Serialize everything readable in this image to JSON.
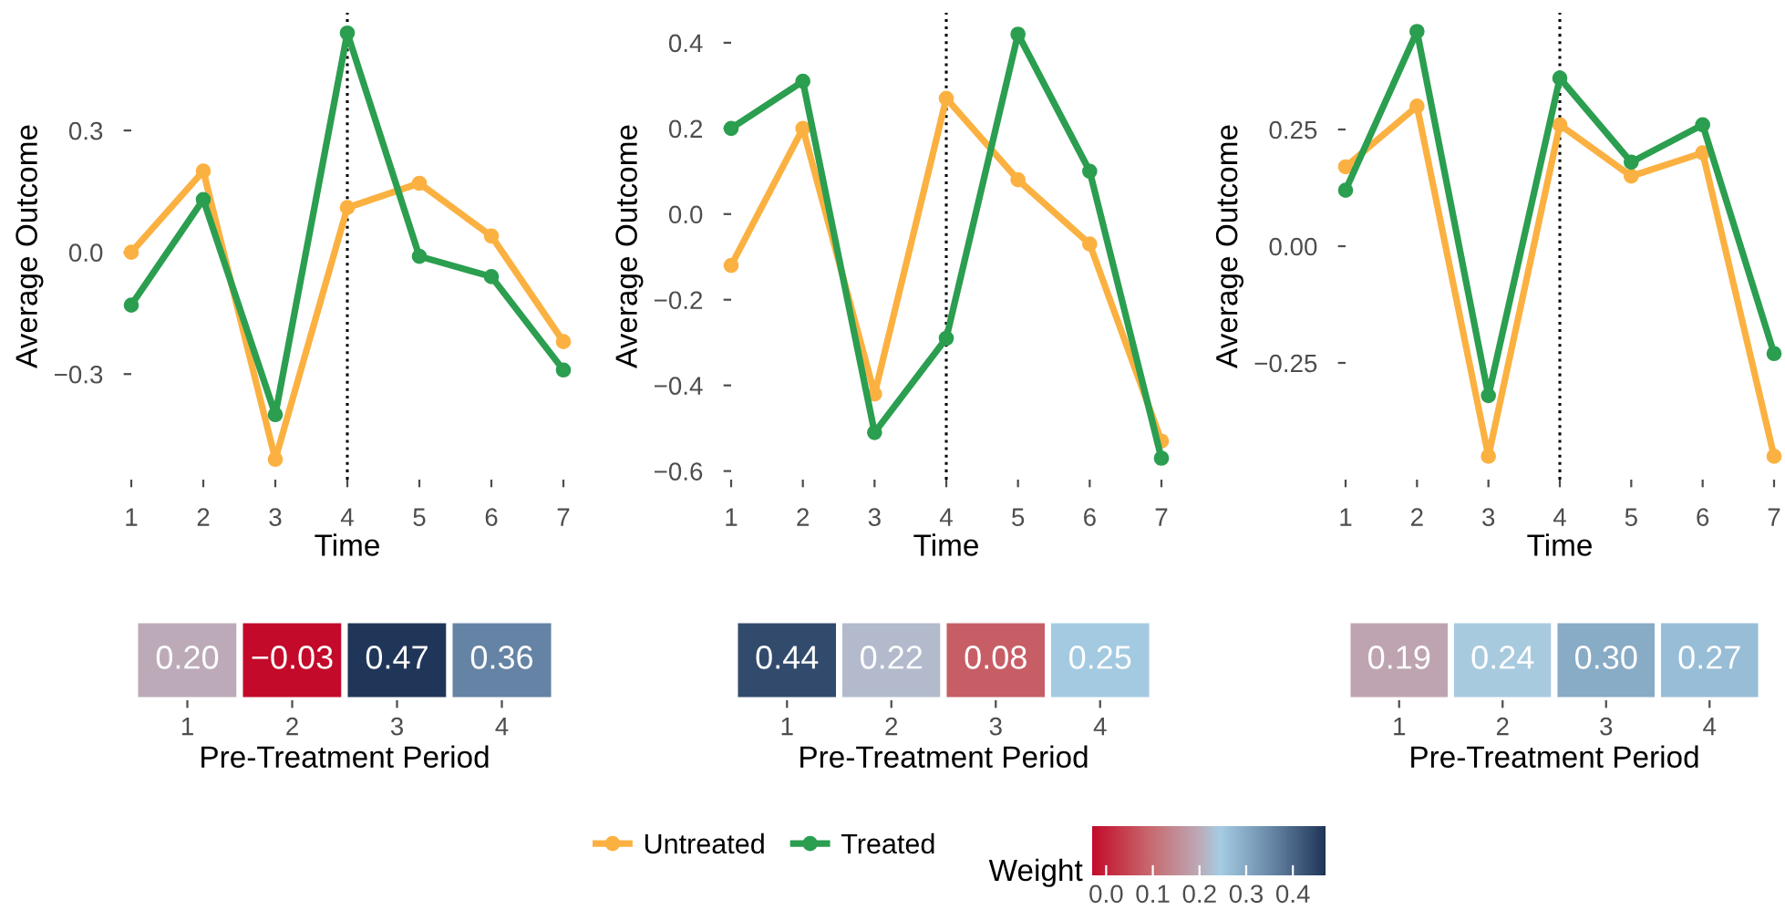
{
  "chart_data": [
    {
      "type": "line",
      "x": [
        1,
        2,
        3,
        4,
        5,
        6,
        7
      ],
      "xlabel": "Time",
      "ylabel": "Average Outcome",
      "xlim": [
        1,
        7
      ],
      "xticks": [
        1,
        2,
        3,
        4,
        5,
        6,
        7
      ],
      "ylim": [
        -0.56,
        0.59
      ],
      "yticks": [
        {
          "value": -0.3,
          "label": "−0.3"
        },
        {
          "value": 0,
          "label": "0.0"
        },
        {
          "value": 0.3,
          "label": "0.3"
        }
      ],
      "marker": "circle",
      "legend": "bottom",
      "ref_lines": [
        {
          "axis": "x",
          "value": 4,
          "line_style": "dotted",
          "color": "#000000"
        }
      ],
      "series": [
        {
          "name": "Untreated",
          "color": "#fbb141",
          "values": [
            0.0,
            0.2,
            -0.51,
            0.11,
            0.17,
            0.04,
            -0.22
          ]
        },
        {
          "name": "Treated",
          "color": "#2b9e50",
          "values": [
            -0.13,
            0.13,
            -0.4,
            0.54,
            -0.01,
            -0.06,
            -0.29
          ]
        }
      ]
    },
    {
      "type": "line",
      "x": [
        1,
        2,
        3,
        4,
        5,
        6,
        7
      ],
      "xlabel": "Time",
      "ylabel": "Average Outcome",
      "xlim": [
        1,
        7
      ],
      "xticks": [
        1,
        2,
        3,
        4,
        5,
        6,
        7
      ],
      "ylim": [
        -0.62,
        0.47
      ],
      "yticks": [
        {
          "value": -0.6,
          "label": "−0.6"
        },
        {
          "value": -0.4,
          "label": "−0.4"
        },
        {
          "value": -0.2,
          "label": "−0.2"
        },
        {
          "value": 0,
          "label": "0.0"
        },
        {
          "value": 0.2,
          "label": "0.2"
        },
        {
          "value": 0.4,
          "label": "0.4"
        }
      ],
      "marker": "circle",
      "ref_lines": [
        {
          "axis": "x",
          "value": 4,
          "line_style": "dotted",
          "color": "#000000"
        }
      ],
      "series": [
        {
          "color": "#fbb141",
          "values": [
            -0.12,
            0.2,
            -0.42,
            0.27,
            0.08,
            -0.07,
            -0.53
          ]
        },
        {
          "color": "#2b9e50",
          "values": [
            0.2,
            0.31,
            -0.51,
            -0.29,
            0.42,
            0.1,
            -0.57
          ]
        }
      ]
    },
    {
      "type": "line",
      "x": [
        1,
        2,
        3,
        4,
        5,
        6,
        7
      ],
      "xlabel": "Time",
      "ylabel": "Average Outcome",
      "xlim": [
        1,
        7
      ],
      "xticks": [
        1,
        2,
        3,
        4,
        5,
        6,
        7
      ],
      "ylim": [
        -0.5,
        0.5
      ],
      "yticks": [
        {
          "value": -0.25,
          "label": "−0.25"
        },
        {
          "value": 0,
          "label": "0.00"
        },
        {
          "value": 0.25,
          "label": "0.25"
        }
      ],
      "marker": "circle",
      "ref_lines": [
        {
          "axis": "x",
          "value": 4,
          "line_style": "dotted",
          "color": "#000000"
        }
      ],
      "series": [
        {
          "color": "#fbb141",
          "values": [
            0.17,
            0.3,
            -0.45,
            0.26,
            0.15,
            0.2,
            -0.45
          ]
        },
        {
          "color": "#2b9e50",
          "values": [
            0.12,
            0.46,
            -0.32,
            0.36,
            0.18,
            0.26,
            -0.23
          ]
        }
      ]
    },
    {
      "type": "heatmap",
      "categories": [
        "1",
        "2",
        "3",
        "4"
      ],
      "y_categories": [
        null
      ],
      "xlabel": "Pre-Treatment Period",
      "cells": [
        [
          0.2,
          -0.03,
          0.47,
          0.36
        ]
      ],
      "cell_labels": [
        [
          "0.20",
          "−0.03",
          "0.47",
          "0.36"
        ]
      ],
      "clim": [
        -0.03,
        0.47
      ],
      "clabel": "Weight",
      "cticks": [
        {
          "value": 0,
          "label": "0.0"
        },
        {
          "value": 0.1,
          "label": "0.1"
        },
        {
          "value": 0.2,
          "label": "0.2"
        },
        {
          "value": 0.3,
          "label": "0.3"
        },
        {
          "value": 0.4,
          "label": "0.4"
        }
      ],
      "data_labels": true
    },
    {
      "type": "heatmap",
      "categories": [
        "1",
        "2",
        "3",
        "4"
      ],
      "y_categories": [
        null
      ],
      "xlabel": "Pre-Treatment Period",
      "cells": [
        [
          0.44,
          0.22,
          0.08,
          0.25
        ]
      ],
      "cell_labels": [
        [
          "0.44",
          "0.22",
          "0.08",
          "0.25"
        ]
      ],
      "data_labels": true
    },
    {
      "type": "heatmap",
      "categories": [
        "1",
        "2",
        "3",
        "4"
      ],
      "y_categories": [
        null
      ],
      "xlabel": "Pre-Treatment Period",
      "cells": [
        [
          0.19,
          0.24,
          0.3,
          0.27
        ]
      ],
      "cell_labels": [
        [
          "0.19",
          "0.24",
          "0.30",
          "0.27"
        ]
      ],
      "data_labels": true
    }
  ]
}
